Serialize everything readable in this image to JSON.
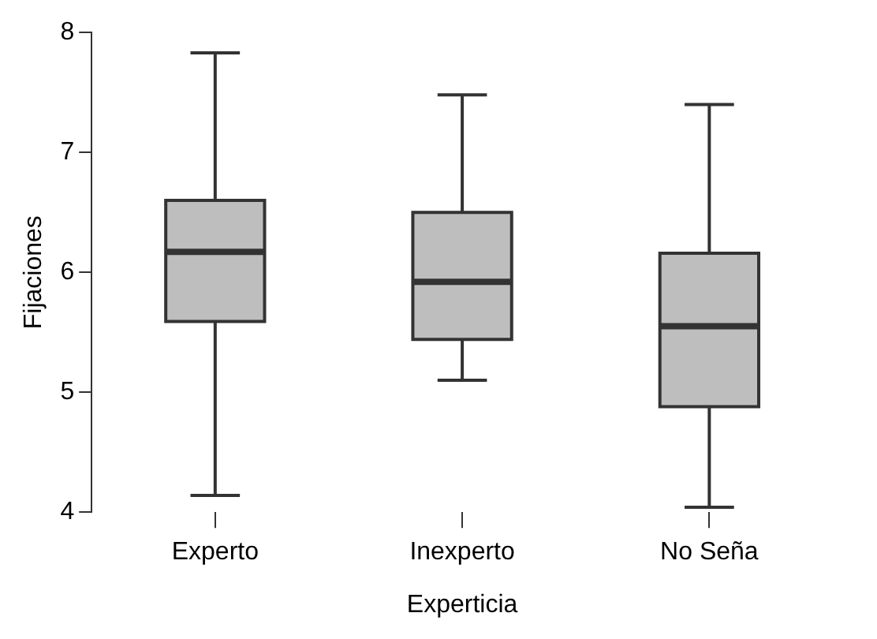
{
  "chart_data": {
    "type": "box",
    "xlabel": "Experticia",
    "ylabel": "Fijaciones",
    "categories": [
      "Experto",
      "Inexperto",
      "No Seña"
    ],
    "color": "#bebebe",
    "boxes": [
      {
        "low": 4.14,
        "q1": 5.59,
        "median": 6.17,
        "q3": 6.6,
        "high": 7.83
      },
      {
        "low": 5.1,
        "q1": 5.44,
        "median": 5.92,
        "q3": 6.5,
        "high": 7.48
      },
      {
        "low": 4.04,
        "q1": 4.88,
        "median": 5.55,
        "q3": 6.16,
        "high": 7.4
      }
    ],
    "ylim": [
      4,
      8
    ],
    "yticks": [
      4,
      5,
      6,
      7,
      8
    ]
  }
}
